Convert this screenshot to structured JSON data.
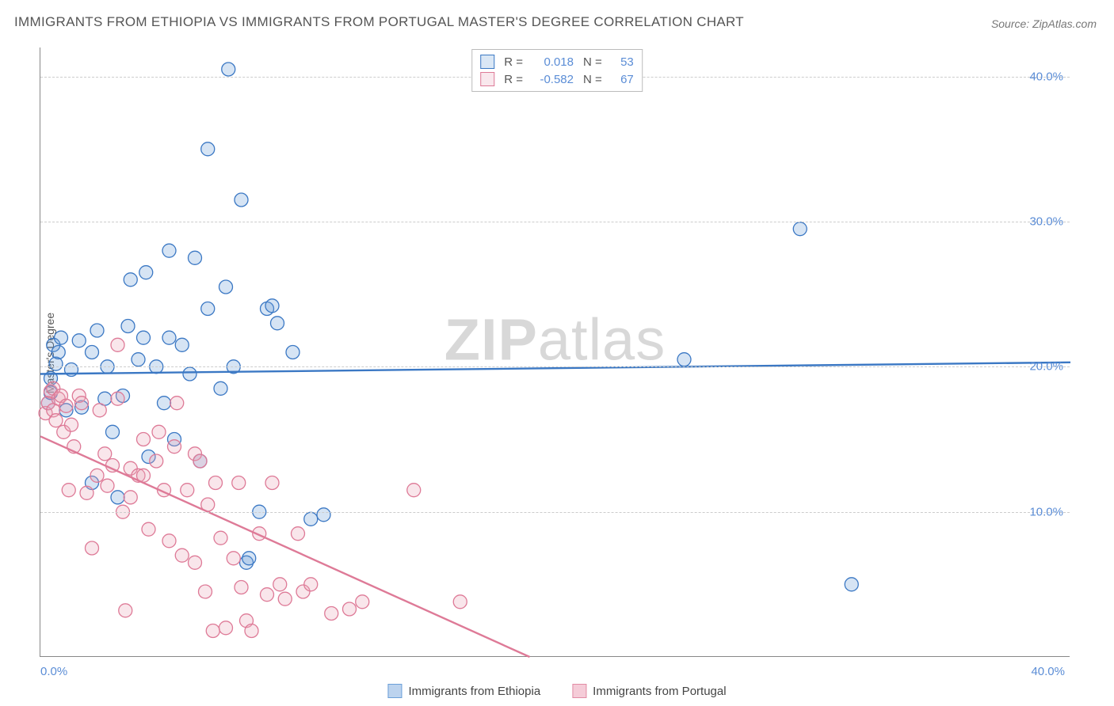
{
  "title": "IMMIGRANTS FROM ETHIOPIA VS IMMIGRANTS FROM PORTUGAL MASTER'S DEGREE CORRELATION CHART",
  "source": "Source: ZipAtlas.com",
  "ylabel": "Master's Degree",
  "watermark": {
    "part1": "ZIP",
    "part2": "atlas"
  },
  "chart": {
    "type": "scatter",
    "xlim": [
      0,
      40
    ],
    "ylim": [
      0,
      42
    ],
    "xticks": [
      {
        "value": 0,
        "label": "0.0%",
        "align": "left"
      },
      {
        "value": 40,
        "label": "40.0%",
        "align": "right"
      }
    ],
    "yticks": [
      {
        "value": 10,
        "label": "10.0%"
      },
      {
        "value": 20,
        "label": "20.0%"
      },
      {
        "value": 30,
        "label": "30.0%"
      },
      {
        "value": 40,
        "label": "40.0%"
      }
    ],
    "grid_color": "#cccccc",
    "background_color": "#ffffff",
    "marker_radius": 8.5,
    "marker_stroke_width": 1.3,
    "marker_fill_opacity": 0.28,
    "trend_line_width": 2.4,
    "series": [
      {
        "name": "Immigrants from Ethiopia",
        "color": "#6a9fd8",
        "stroke": "#3b78c4",
        "r_value": "0.018",
        "n_value": "53",
        "trend": {
          "x1": 0,
          "y1": 19.5,
          "x2": 40,
          "y2": 20.3
        },
        "points": [
          [
            0.3,
            17.5
          ],
          [
            0.4,
            18.2
          ],
          [
            0.4,
            19.2
          ],
          [
            0.5,
            21.5
          ],
          [
            0.6,
            20.2
          ],
          [
            0.7,
            21.0
          ],
          [
            0.8,
            22.0
          ],
          [
            1.0,
            17.0
          ],
          [
            1.2,
            19.8
          ],
          [
            1.5,
            21.8
          ],
          [
            1.6,
            17.2
          ],
          [
            2.0,
            12.0
          ],
          [
            2.0,
            21.0
          ],
          [
            2.2,
            22.5
          ],
          [
            2.5,
            17.8
          ],
          [
            2.6,
            20.0
          ],
          [
            2.8,
            15.5
          ],
          [
            3.0,
            11.0
          ],
          [
            3.2,
            18.0
          ],
          [
            3.4,
            22.8
          ],
          [
            3.5,
            26.0
          ],
          [
            3.8,
            20.5
          ],
          [
            4.0,
            22.0
          ],
          [
            4.1,
            26.5
          ],
          [
            4.2,
            13.8
          ],
          [
            4.5,
            20.0
          ],
          [
            4.8,
            17.5
          ],
          [
            5.0,
            22.0
          ],
          [
            5.0,
            28.0
          ],
          [
            5.2,
            15.0
          ],
          [
            5.5,
            21.5
          ],
          [
            5.8,
            19.5
          ],
          [
            6.0,
            27.5
          ],
          [
            6.2,
            13.5
          ],
          [
            6.5,
            24.0
          ],
          [
            6.5,
            35.0
          ],
          [
            7.0,
            18.5
          ],
          [
            7.2,
            25.5
          ],
          [
            7.3,
            40.5
          ],
          [
            7.5,
            20.0
          ],
          [
            7.8,
            31.5
          ],
          [
            8.0,
            6.5
          ],
          [
            8.1,
            6.8
          ],
          [
            8.5,
            10.0
          ],
          [
            8.8,
            24.0
          ],
          [
            9.0,
            24.2
          ],
          [
            9.2,
            23.0
          ],
          [
            9.8,
            21.0
          ],
          [
            10.5,
            9.5
          ],
          [
            11.0,
            9.8
          ],
          [
            25.0,
            20.5
          ],
          [
            29.5,
            29.5
          ],
          [
            31.5,
            5.0
          ]
        ]
      },
      {
        "name": "Immigrants from Portugal",
        "color": "#e9a4b8",
        "stroke": "#de7a97",
        "r_value": "-0.582",
        "n_value": "67",
        "trend": {
          "x1": 0,
          "y1": 15.2,
          "x2": 19,
          "y2": 0
        },
        "points": [
          [
            0.2,
            16.8
          ],
          [
            0.3,
            17.5
          ],
          [
            0.4,
            18.3
          ],
          [
            0.5,
            17.0
          ],
          [
            0.5,
            18.5
          ],
          [
            0.6,
            16.3
          ],
          [
            0.7,
            17.8
          ],
          [
            0.8,
            18.0
          ],
          [
            0.9,
            15.5
          ],
          [
            1.0,
            17.3
          ],
          [
            1.1,
            11.5
          ],
          [
            1.2,
            16.0
          ],
          [
            1.3,
            14.5
          ],
          [
            1.5,
            18.0
          ],
          [
            1.6,
            17.5
          ],
          [
            1.8,
            11.3
          ],
          [
            2.0,
            7.5
          ],
          [
            2.2,
            12.5
          ],
          [
            2.3,
            17.0
          ],
          [
            2.5,
            14.0
          ],
          [
            2.6,
            11.8
          ],
          [
            2.8,
            13.2
          ],
          [
            3.0,
            17.8
          ],
          [
            3.0,
            21.5
          ],
          [
            3.2,
            10.0
          ],
          [
            3.3,
            3.2
          ],
          [
            3.5,
            11.0
          ],
          [
            3.5,
            13.0
          ],
          [
            3.8,
            12.5
          ],
          [
            4.0,
            12.5
          ],
          [
            4.0,
            15.0
          ],
          [
            4.2,
            8.8
          ],
          [
            4.5,
            13.5
          ],
          [
            4.6,
            15.5
          ],
          [
            4.8,
            11.5
          ],
          [
            5.0,
            8.0
          ],
          [
            5.2,
            14.5
          ],
          [
            5.3,
            17.5
          ],
          [
            5.5,
            7.0
          ],
          [
            5.7,
            11.5
          ],
          [
            6.0,
            6.5
          ],
          [
            6.0,
            14.0
          ],
          [
            6.2,
            13.5
          ],
          [
            6.4,
            4.5
          ],
          [
            6.5,
            10.5
          ],
          [
            6.7,
            1.8
          ],
          [
            6.8,
            12.0
          ],
          [
            7.0,
            8.2
          ],
          [
            7.2,
            2.0
          ],
          [
            7.5,
            6.8
          ],
          [
            7.7,
            12.0
          ],
          [
            7.8,
            4.8
          ],
          [
            8.0,
            2.5
          ],
          [
            8.2,
            1.8
          ],
          [
            8.5,
            8.5
          ],
          [
            8.8,
            4.3
          ],
          [
            9.0,
            12.0
          ],
          [
            9.3,
            5.0
          ],
          [
            9.5,
            4.0
          ],
          [
            10.0,
            8.5
          ],
          [
            10.2,
            4.5
          ],
          [
            10.5,
            5.0
          ],
          [
            11.3,
            3.0
          ],
          [
            12.0,
            3.3
          ],
          [
            12.5,
            3.8
          ],
          [
            14.5,
            11.5
          ],
          [
            16.3,
            3.8
          ]
        ]
      }
    ]
  },
  "legend_top": {
    "r_prefix": "R =",
    "n_prefix": "N ="
  },
  "legend_bottom": [
    {
      "label": "Immigrants from Ethiopia",
      "fill": "#bcd3ee",
      "stroke": "#6a9fd8"
    },
    {
      "label": "Immigrants from Portugal",
      "fill": "#f5ccd8",
      "stroke": "#e28ba4"
    }
  ]
}
